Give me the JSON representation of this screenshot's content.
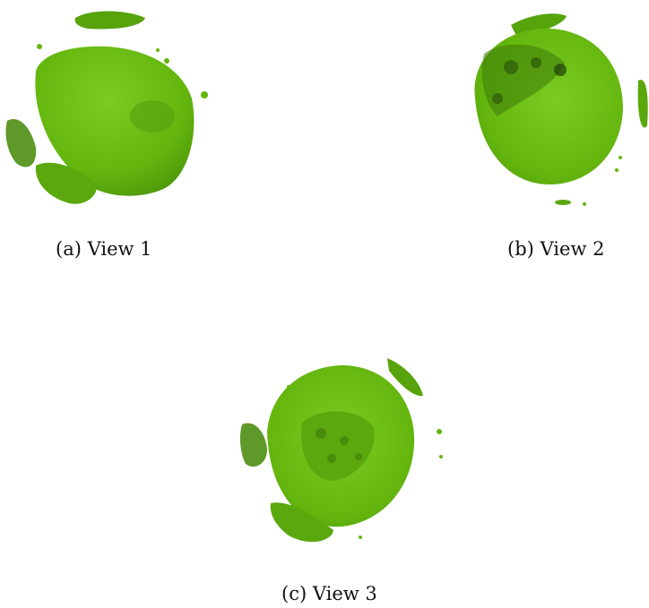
{
  "figure": {
    "subfigures": [
      {
        "caption": "(a) View 1"
      },
      {
        "caption": "(b) View 2"
      },
      {
        "caption": "(c) View 3"
      }
    ]
  },
  "colors": {
    "blob_main": "#64b60e",
    "blob_dark": "#3e7a0a",
    "blob_light": "#7acb22",
    "shadow": "#4f6b3a"
  }
}
